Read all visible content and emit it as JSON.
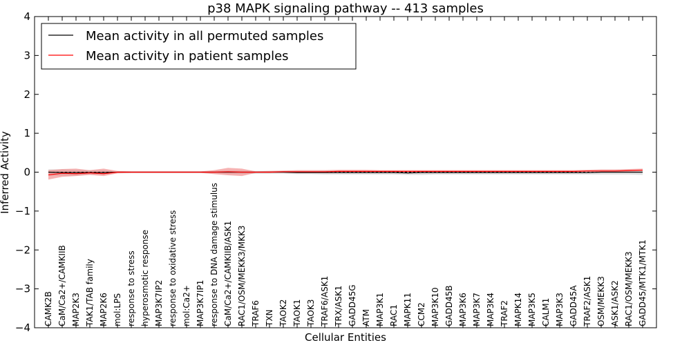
{
  "chart_data": {
    "type": "line",
    "title": "p38 MAPK signaling pathway -- 413 samples",
    "xlabel": "Cellular Entities",
    "ylabel": "Inferred Activity",
    "ylim": [
      -4,
      4
    ],
    "yticks": [
      -4,
      -3,
      -2,
      -1,
      0,
      1,
      2,
      3,
      4
    ],
    "legend_position": "upper-left",
    "categories": [
      "CAMK2B",
      "CaM/Ca2+/CAMKIIB",
      "MAP2K3",
      "TAK1/TAB family",
      "MAP2K6",
      "mol:LPS",
      "response to stress",
      "hyperosmotic response",
      "MAP3K7IP2",
      "response to oxidative stress",
      "mol:Ca2+",
      "MAP3K7IP1",
      "response to DNA damage stimulus",
      "CaM/Ca2+/CAMKIIB/ASK1",
      "RAC1/OSM/MEKK3/MKK3",
      "TRAF6",
      "TXN",
      "TAOK2",
      "TAOK1",
      "TAOK3",
      "TRAF6/ASK1",
      "TRX/ASK1",
      "GADD45G",
      "ATM",
      "MAP3K1",
      "RAC1",
      "MAPK11",
      "CCM2",
      "MAP3K10",
      "GADD45B",
      "MAP3K6",
      "MAP3K7",
      "MAP3K4",
      "TRAF2",
      "MAPK14",
      "MAP3K5",
      "CALM1",
      "MAP3K3",
      "GADD45A",
      "TRAF2/ASK1",
      "OSM/MEKK3",
      "ASK1/ASK2",
      "RAC1/OSM/MEKK3",
      "GADD45/MTK1/MTK1"
    ],
    "series": [
      {
        "name": "Mean activity in all permuted samples",
        "color": "#000000",
        "band_color": "#bbbbbb",
        "values": [
          0.0,
          -0.01,
          -0.01,
          -0.01,
          -0.01,
          0.0,
          0.0,
          0.0,
          0.0,
          0.0,
          0.0,
          0.0,
          0.0,
          0.0,
          0.0,
          0.0,
          0.0,
          0.0,
          -0.01,
          -0.01,
          -0.01,
          -0.01,
          -0.01,
          -0.01,
          -0.01,
          -0.01,
          -0.02,
          -0.01,
          -0.01,
          -0.01,
          -0.01,
          -0.01,
          -0.01,
          -0.01,
          -0.01,
          -0.01,
          -0.01,
          -0.01,
          -0.01,
          -0.01,
          0.0,
          0.0,
          0.0,
          0.0
        ],
        "band_low": [
          -0.09,
          -0.09,
          -0.09,
          -0.06,
          -0.06,
          -0.02,
          -0.02,
          -0.02,
          -0.02,
          -0.02,
          -0.02,
          -0.02,
          -0.03,
          -0.05,
          -0.05,
          -0.04,
          -0.04,
          -0.04,
          -0.05,
          -0.05,
          -0.06,
          -0.06,
          -0.06,
          -0.06,
          -0.06,
          -0.06,
          -0.07,
          -0.07,
          -0.06,
          -0.06,
          -0.06,
          -0.06,
          -0.06,
          -0.06,
          -0.06,
          -0.06,
          -0.06,
          -0.06,
          -0.06,
          -0.06,
          -0.06,
          -0.06,
          -0.06,
          -0.07
        ],
        "band_high": [
          0.07,
          0.07,
          0.06,
          0.05,
          0.05,
          0.02,
          0.02,
          0.02,
          0.02,
          0.02,
          0.02,
          0.02,
          0.03,
          0.04,
          0.04,
          0.03,
          0.03,
          0.03,
          0.03,
          0.03,
          0.04,
          0.04,
          0.04,
          0.04,
          0.04,
          0.04,
          0.03,
          0.03,
          0.03,
          0.03,
          0.03,
          0.03,
          0.03,
          0.03,
          0.03,
          0.03,
          0.03,
          0.03,
          0.03,
          0.04,
          0.04,
          0.04,
          0.05,
          0.05
        ]
      },
      {
        "name": "Mean activity in patient samples",
        "color": "#ff0000",
        "band_color": "#f08080",
        "values": [
          -0.07,
          -0.03,
          -0.04,
          -0.02,
          -0.04,
          0.0,
          0.0,
          0.0,
          0.0,
          0.0,
          0.0,
          0.0,
          0.0,
          0.01,
          0.0,
          0.0,
          0.0,
          0.01,
          0.01,
          0.01,
          0.01,
          0.02,
          0.02,
          0.02,
          0.02,
          0.02,
          0.02,
          0.02,
          0.02,
          0.02,
          0.02,
          0.02,
          0.02,
          0.02,
          0.02,
          0.02,
          0.02,
          0.02,
          0.02,
          0.03,
          0.03,
          0.03,
          0.04,
          0.05
        ],
        "band_low": [
          -0.19,
          -0.12,
          -0.1,
          -0.07,
          -0.1,
          -0.03,
          -0.02,
          -0.02,
          -0.02,
          -0.02,
          -0.02,
          -0.02,
          -0.05,
          -0.08,
          -0.1,
          -0.02,
          -0.02,
          -0.01,
          -0.01,
          -0.01,
          -0.01,
          0.0,
          0.0,
          0.0,
          0.0,
          0.0,
          0.0,
          0.0,
          0.0,
          0.0,
          0.0,
          0.0,
          0.0,
          0.0,
          0.0,
          0.0,
          0.0,
          0.0,
          0.0,
          0.01,
          0.01,
          0.01,
          0.02,
          0.03
        ],
        "band_high": [
          0.05,
          0.08,
          0.09,
          0.05,
          0.09,
          0.03,
          0.02,
          0.02,
          0.02,
          0.02,
          0.02,
          0.02,
          0.05,
          0.11,
          0.09,
          0.02,
          0.03,
          0.04,
          0.05,
          0.05,
          0.05,
          0.06,
          0.06,
          0.06,
          0.05,
          0.05,
          0.05,
          0.05,
          0.05,
          0.05,
          0.05,
          0.05,
          0.05,
          0.05,
          0.05,
          0.05,
          0.05,
          0.05,
          0.05,
          0.06,
          0.07,
          0.07,
          0.08,
          0.09
        ]
      }
    ],
    "reference_line": {
      "y": 0,
      "style": "dashed",
      "color": "#000000"
    }
  }
}
